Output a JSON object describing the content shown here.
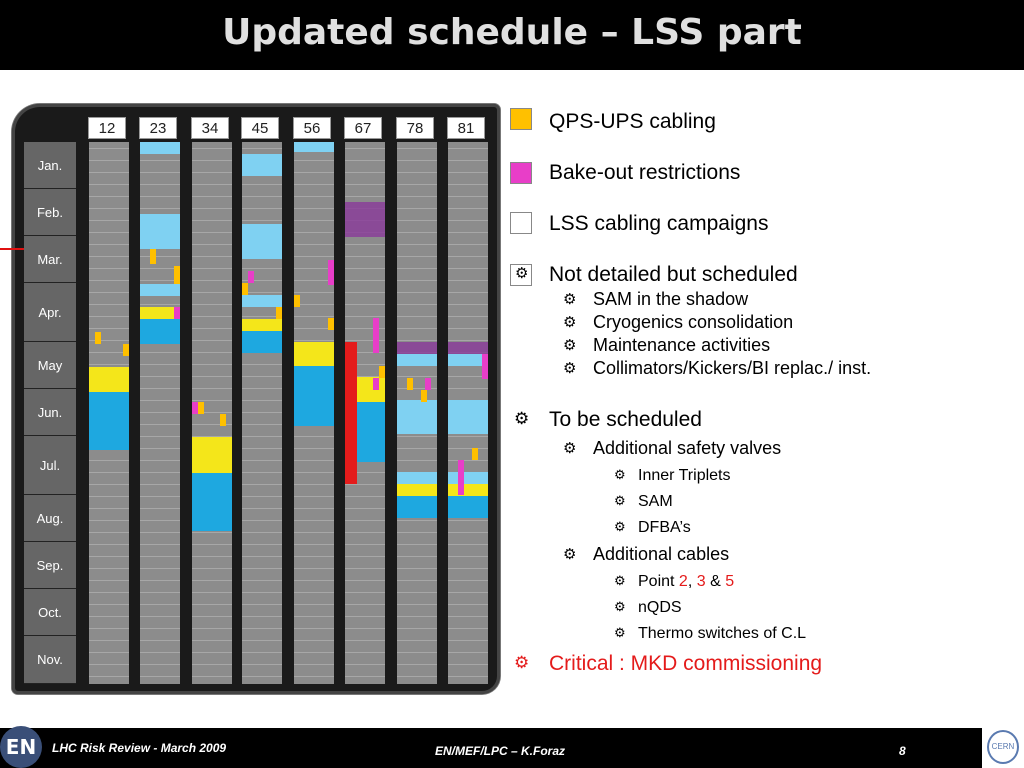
{
  "slide": {
    "title": "Updated schedule – LSS part",
    "footer": {
      "left": "LHC Risk Review - March 2009",
      "middle": "EN/MEF/LPC – K.Foraz",
      "page": "8",
      "badge": "EN",
      "logo": "CERN"
    }
  },
  "schedule": {
    "columns": [
      "12",
      "23",
      "34",
      "45",
      "56",
      "67",
      "78",
      "81"
    ],
    "months": [
      "Jan.",
      "Feb.",
      "Mar.",
      "Apr.",
      "May",
      "Jun.",
      "Jul.",
      "Aug.",
      "Sep.",
      "Oct.",
      "Nov."
    ],
    "arrow_month": "Mar.",
    "colors": {
      "qps_ups": "#ffc000",
      "bake_out": "#e83ec8",
      "lss_cabling": "$gold",
      "not_detailed": "$ltgrn",
      "cyan": "#7fd1f2",
      "blue": "#1ea8e0",
      "yellow": "#f4e61a",
      "purple": "#8a3a9a",
      "critical": "#e41b1b",
      "grid_gray": "#8c8c8c"
    }
  },
  "legend": {
    "items": [
      {
        "label": "QPS-UPS cabling",
        "color": "#ffc000"
      },
      {
        "label": "Bake-out restrictions",
        "color": "#e83ec8"
      },
      {
        "label": "LSS cabling campaigns",
        "color": "$gold"
      },
      {
        "label": "Not detailed but scheduled",
        "color": "$ltgrn",
        "icon": "gear-icon"
      }
    ],
    "not_detailed_sub": [
      "SAM in the shadow",
      "Cryogenics consolidation",
      "Maintenance activities",
      "Collimators/Kickers/BI replac./ inst."
    ],
    "to_be_scheduled": {
      "label": "To be scheduled",
      "safety_valves": {
        "label": "Additional safety valves",
        "items": [
          "Inner Triplets",
          "SAM",
          "DFBA’s"
        ]
      },
      "cables": {
        "label": "Additional cables",
        "point_prefix": "Point",
        "points": [
          "2",
          "3",
          "5"
        ],
        "sep1": ",",
        "sep2": "&",
        "items": [
          "nQDS",
          "Thermo switches of C.L"
        ]
      }
    },
    "critical": "Critical : MKD commissioning",
    "critical_color": "#e41b1b"
  }
}
